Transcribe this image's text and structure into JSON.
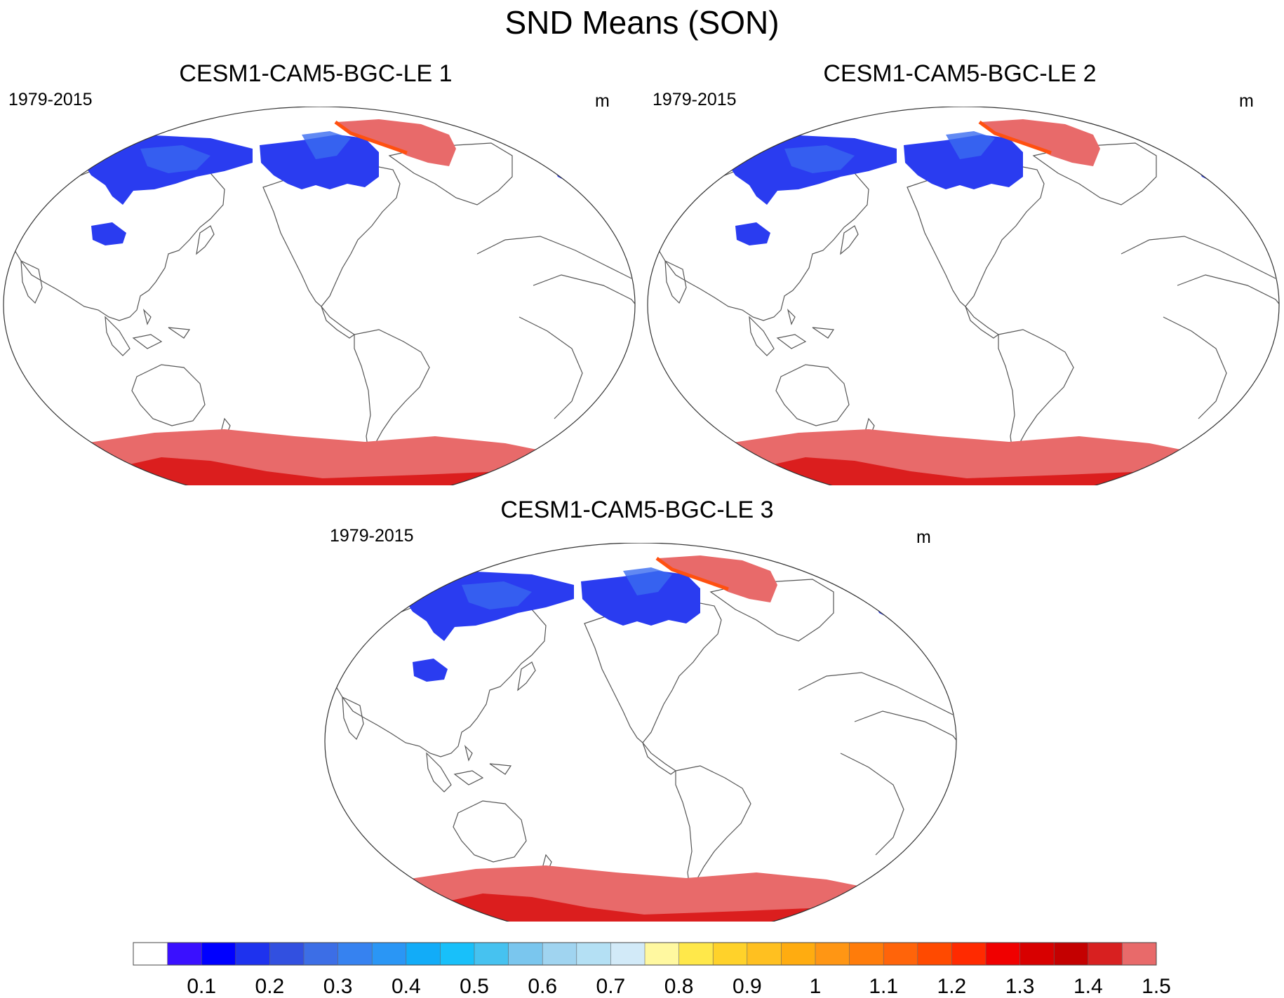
{
  "title": "SND Means (SON)",
  "panels": [
    {
      "title": "CESM1-CAM5-BGC-LE 1",
      "years": "1979-2015",
      "unit": "m"
    },
    {
      "title": "CESM1-CAM5-BGC-LE 2",
      "years": "1979-2015",
      "unit": "m"
    },
    {
      "title": "CESM1-CAM5-BGC-LE 3",
      "years": "1979-2015",
      "unit": "m"
    }
  ],
  "colorbar": {
    "labels": [
      "0.1",
      "0.2",
      "0.3",
      "0.4",
      "0.5",
      "0.6",
      "0.7",
      "0.8",
      "0.9",
      "1",
      "1.1",
      "1.2",
      "1.3",
      "1.4",
      "1.5"
    ],
    "colors": [
      "#ffffff",
      "#3a10ff",
      "#0000ff",
      "#1e32ee",
      "#3250e0",
      "#3c6ee6",
      "#3682f0",
      "#2a96f5",
      "#12acf8",
      "#18c0fa",
      "#46c2f0",
      "#7ac6ee",
      "#a0d4f0",
      "#b4e0f4",
      "#d2eaf8",
      "#fff8a0",
      "#ffe84a",
      "#ffd22a",
      "#ffc020",
      "#ffac10",
      "#ff9614",
      "#ff7c0a",
      "#ff640a",
      "#ff4a00",
      "#ff2a00",
      "#f00000",
      "#d80000",
      "#c40000",
      "#d82020",
      "#e86a6a"
    ]
  },
  "map_colors": {
    "snow_low": "#2a3cf0",
    "snow_mid": "#3a6cf0",
    "greenland": "#e86a6a",
    "greenland_edge": "#ff5010",
    "antarctica": "#e86a6a",
    "antarctica_deep": "#d81010",
    "coast": "#555555"
  }
}
